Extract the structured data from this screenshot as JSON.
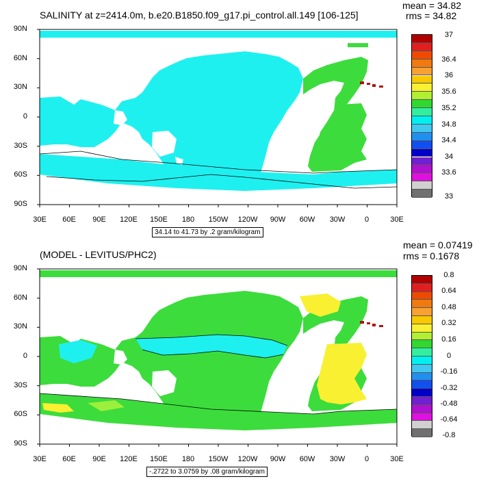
{
  "panels": [
    {
      "title": "SALINITY at z=2414.0m, b.e20.B1850.f09_g17.pi_control.all.149 [106-125]",
      "mean_text": "mean = 34.82",
      "rms_text": "rms = 34.82",
      "y_ticks": [
        "90N",
        "60N",
        "30N",
        "0",
        "30S",
        "60S",
        "90S"
      ],
      "x_ticks": [
        "30E",
        "60E",
        "90E",
        "120E",
        "150E",
        "180",
        "150W",
        "120W",
        "90W",
        "60W",
        "30W",
        "0",
        "30E"
      ],
      "range_label": "34.14 to 41.73 by .2 gram/kilogram",
      "colorbar_labels": [
        "37",
        "36.4",
        "36",
        "35.6",
        "35.2",
        "34.8",
        "34.4",
        "34",
        "33.6",
        "33"
      ],
      "colorbar_colors": [
        "#b00000",
        "#e02020",
        "#f04a00",
        "#f07a10",
        "#f8a030",
        "#f8c800",
        "#f8f030",
        "#b0f030",
        "#30d830",
        "#30f0a0",
        "#00f0f0",
        "#40c8f0",
        "#2090f0",
        "#1050f0",
        "#0000c8",
        "#7020d0",
        "#b010d0",
        "#e010e0",
        "#d0d0d0",
        "#707070"
      ],
      "colors": {
        "ocean": "#1ef0f0",
        "atlantic": "#3cdc3c",
        "mediterranean": "#b01010",
        "land": "#ffffff"
      }
    },
    {
      "title": "(MODEL - LEVITUS/PHC2)",
      "mean_text": "mean = 0.07419",
      "rms_text": "rms = 0.1678",
      "y_ticks": [
        "90N",
        "60N",
        "30N",
        "0",
        "30S",
        "60S",
        "90S"
      ],
      "x_ticks": [
        "30E",
        "60E",
        "90E",
        "120E",
        "150E",
        "180",
        "150W",
        "120W",
        "90W",
        "60W",
        "30W",
        "0",
        "30E"
      ],
      "range_label": "-.2722 to 3.0759 by .08 gram/kilogram",
      "colorbar_labels": [
        "0.8",
        "0.64",
        "0.48",
        "0.32",
        "0.16",
        "0",
        "-0.16",
        "-0.32",
        "-0.48",
        "-0.64",
        "-0.8"
      ],
      "colorbar_colors": [
        "#b00000",
        "#e02020",
        "#f04a00",
        "#f07a10",
        "#f8a030",
        "#f8c800",
        "#f8f030",
        "#b0f030",
        "#30d830",
        "#30f0a0",
        "#00f0f0",
        "#40c8f0",
        "#2090f0",
        "#1050f0",
        "#0000c8",
        "#7020d0",
        "#b010d0",
        "#e010e0",
        "#d0d0d0",
        "#707070"
      ],
      "colors": {
        "green": "#3cdc3c",
        "cyan": "#1ef0f0",
        "yellow": "#f8f030",
        "lightgreen": "#9cf03c",
        "mediterranean": "#b01010"
      }
    }
  ]
}
